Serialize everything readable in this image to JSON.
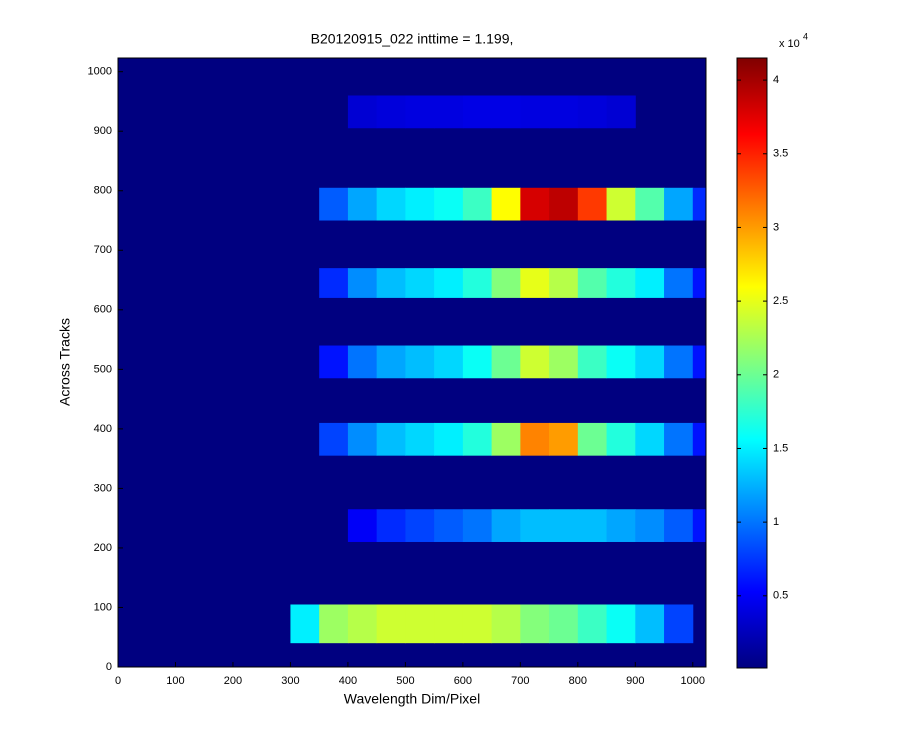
{
  "chart_data": {
    "type": "heatmap",
    "title": "B20120915_022 inttime = 1.199,",
    "xlabel": "Wavelength Dim/Pixel",
    "ylabel": "Across Tracks",
    "xlim": [
      0,
      1023
    ],
    "ylim": [
      0,
      1023
    ],
    "xticks": [
      0,
      100,
      200,
      300,
      400,
      500,
      600,
      700,
      800,
      900,
      1000
    ],
    "yticks": [
      0,
      100,
      200,
      300,
      400,
      500,
      600,
      700,
      800,
      900,
      1000
    ],
    "background_value": 100,
    "x_bins": [
      300,
      350,
      400,
      450,
      500,
      550,
      600,
      650,
      700,
      750,
      800,
      850,
      900,
      950,
      1000,
      1023
    ],
    "rows": [
      {
        "y": [
          905,
          960
        ],
        "values": [
          null,
          null,
          3500,
          3800,
          4000,
          4000,
          4200,
          4200,
          4000,
          4000,
          3800,
          3500,
          null,
          null,
          null
        ]
      },
      {
        "y": [
          750,
          805
        ],
        "values": [
          null,
          9000,
          12000,
          14000,
          15000,
          16000,
          18000,
          26000,
          38000,
          39000,
          34000,
          24000,
          19000,
          12000,
          7000
        ]
      },
      {
        "y": [
          620,
          670
        ],
        "values": [
          null,
          7000,
          11000,
          13000,
          14000,
          15000,
          17000,
          21000,
          25000,
          23000,
          19000,
          17000,
          15000,
          10000,
          6000
        ]
      },
      {
        "y": [
          485,
          540
        ],
        "values": [
          null,
          6000,
          10000,
          12000,
          13000,
          14000,
          16000,
          20000,
          24000,
          22000,
          18000,
          16000,
          14000,
          10000,
          6000
        ]
      },
      {
        "y": [
          355,
          410
        ],
        "values": [
          null,
          8000,
          11000,
          13000,
          14000,
          15000,
          17000,
          22000,
          31000,
          30000,
          20000,
          17000,
          14000,
          10000,
          6000
        ]
      },
      {
        "y": [
          210,
          265
        ],
        "values": [
          null,
          null,
          5000,
          7000,
          8000,
          9000,
          10000,
          12000,
          13000,
          13000,
          13000,
          12000,
          11000,
          9000,
          6000
        ]
      },
      {
        "y": [
          40,
          105
        ],
        "values": [
          15000,
          22000,
          23000,
          24000,
          24000,
          24000,
          24000,
          23000,
          21000,
          20000,
          18000,
          16000,
          13000,
          8000,
          null
        ]
      }
    ],
    "clim": [
      100,
      41500
    ],
    "colorbar_ticks": [
      {
        "value": 5000,
        "label": "0.5"
      },
      {
        "value": 10000,
        "label": "1"
      },
      {
        "value": 15000,
        "label": "1.5"
      },
      {
        "value": 20000,
        "label": "2"
      },
      {
        "value": 25000,
        "label": "2.5"
      },
      {
        "value": 30000,
        "label": "3"
      },
      {
        "value": 35000,
        "label": "3.5"
      },
      {
        "value": 40000,
        "label": "4"
      }
    ],
    "colorbar_scale_label": "x 10",
    "colorbar_scale_exponent": "4",
    "colormap": "jet"
  }
}
